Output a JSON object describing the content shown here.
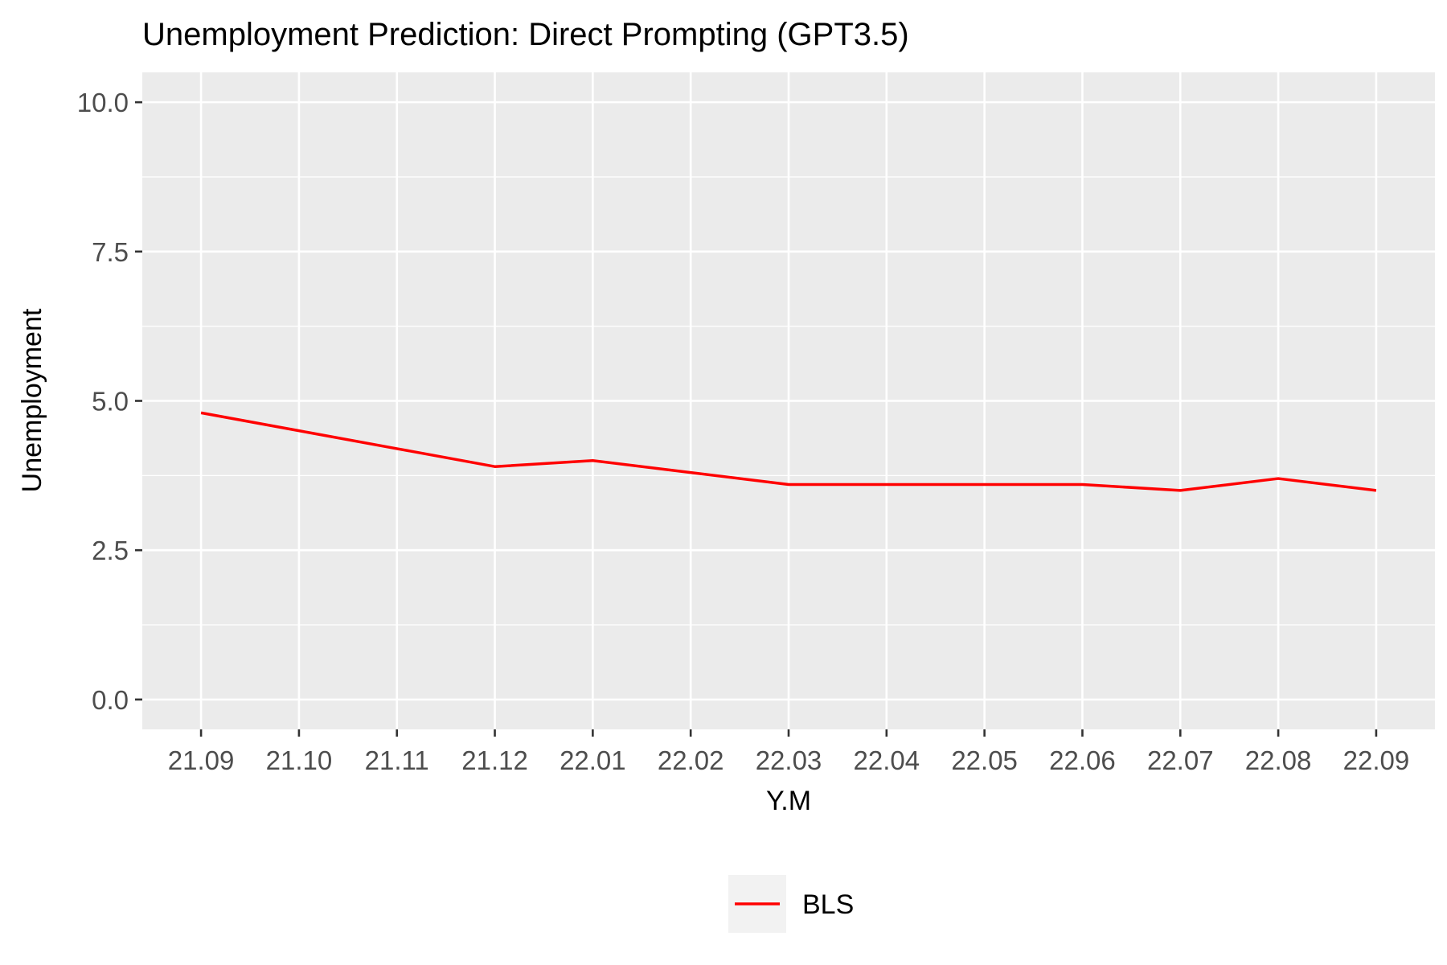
{
  "chart_data": {
    "type": "line",
    "title": "Unemployment Prediction: Direct Prompting (GPT3.5)",
    "xlabel": "Y.M",
    "ylabel": "Unemployment",
    "categories": [
      "21.09",
      "21.10",
      "21.11",
      "21.12",
      "22.01",
      "22.02",
      "22.03",
      "22.04",
      "22.05",
      "22.06",
      "22.07",
      "22.08",
      "22.09"
    ],
    "series": [
      {
        "name": "BLS",
        "color": "#ff0000",
        "values": [
          4.8,
          4.5,
          4.2,
          3.9,
          4.0,
          3.8,
          3.6,
          3.6,
          3.6,
          3.6,
          3.5,
          3.7,
          3.5
        ]
      }
    ],
    "ylim": [
      -0.5,
      10.5
    ],
    "yticks": [
      0.0,
      2.5,
      5.0,
      7.5,
      10.0
    ],
    "ytick_labels": [
      "0.0",
      "2.5",
      "5.0",
      "7.5",
      "10.0"
    ],
    "grid": true,
    "legend_position": "bottom",
    "panel_color": "#ebebeb"
  }
}
